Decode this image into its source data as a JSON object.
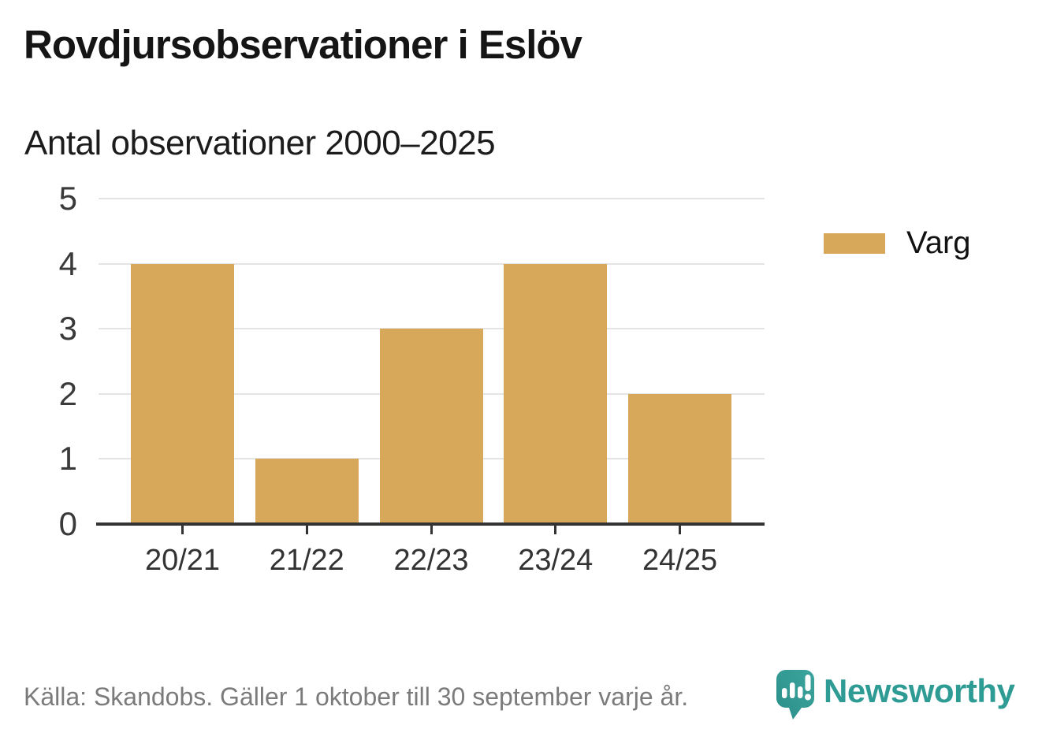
{
  "header": {
    "title": "Rovdjursobservationer i Eslöv",
    "subtitle": "Antal observationer 2000–2025"
  },
  "legend": {
    "label": "Varg"
  },
  "chart_data": {
    "type": "bar",
    "categories": [
      "20/21",
      "21/22",
      "22/23",
      "23/24",
      "24/25"
    ],
    "series": [
      {
        "name": "Varg",
        "color": "#d7a85a",
        "values": [
          4,
          1,
          3,
          4,
          2
        ]
      }
    ],
    "title": "Rovdjursobservationer i Eslöv",
    "subtitle": "Antal observationer 2000–2025",
    "xlabel": "",
    "ylabel": "",
    "ylim": [
      0,
      5
    ],
    "yticks": [
      0,
      1,
      2,
      3,
      4,
      5
    ],
    "grid": true,
    "legend_position": "right"
  },
  "footer": {
    "source": "Källa: Skandobs. Gäller 1 oktober till 30 september varje år.",
    "brand": "Newsworthy"
  },
  "colors": {
    "bar": "#d7a85a",
    "gridline": "#e4e4e4",
    "axis": "#333333",
    "text_dark": "#1a1a1a",
    "text_muted": "#7b7b7b",
    "brand_teal": "#2f9b95",
    "brand_teal_dark": "#2c8f89"
  }
}
